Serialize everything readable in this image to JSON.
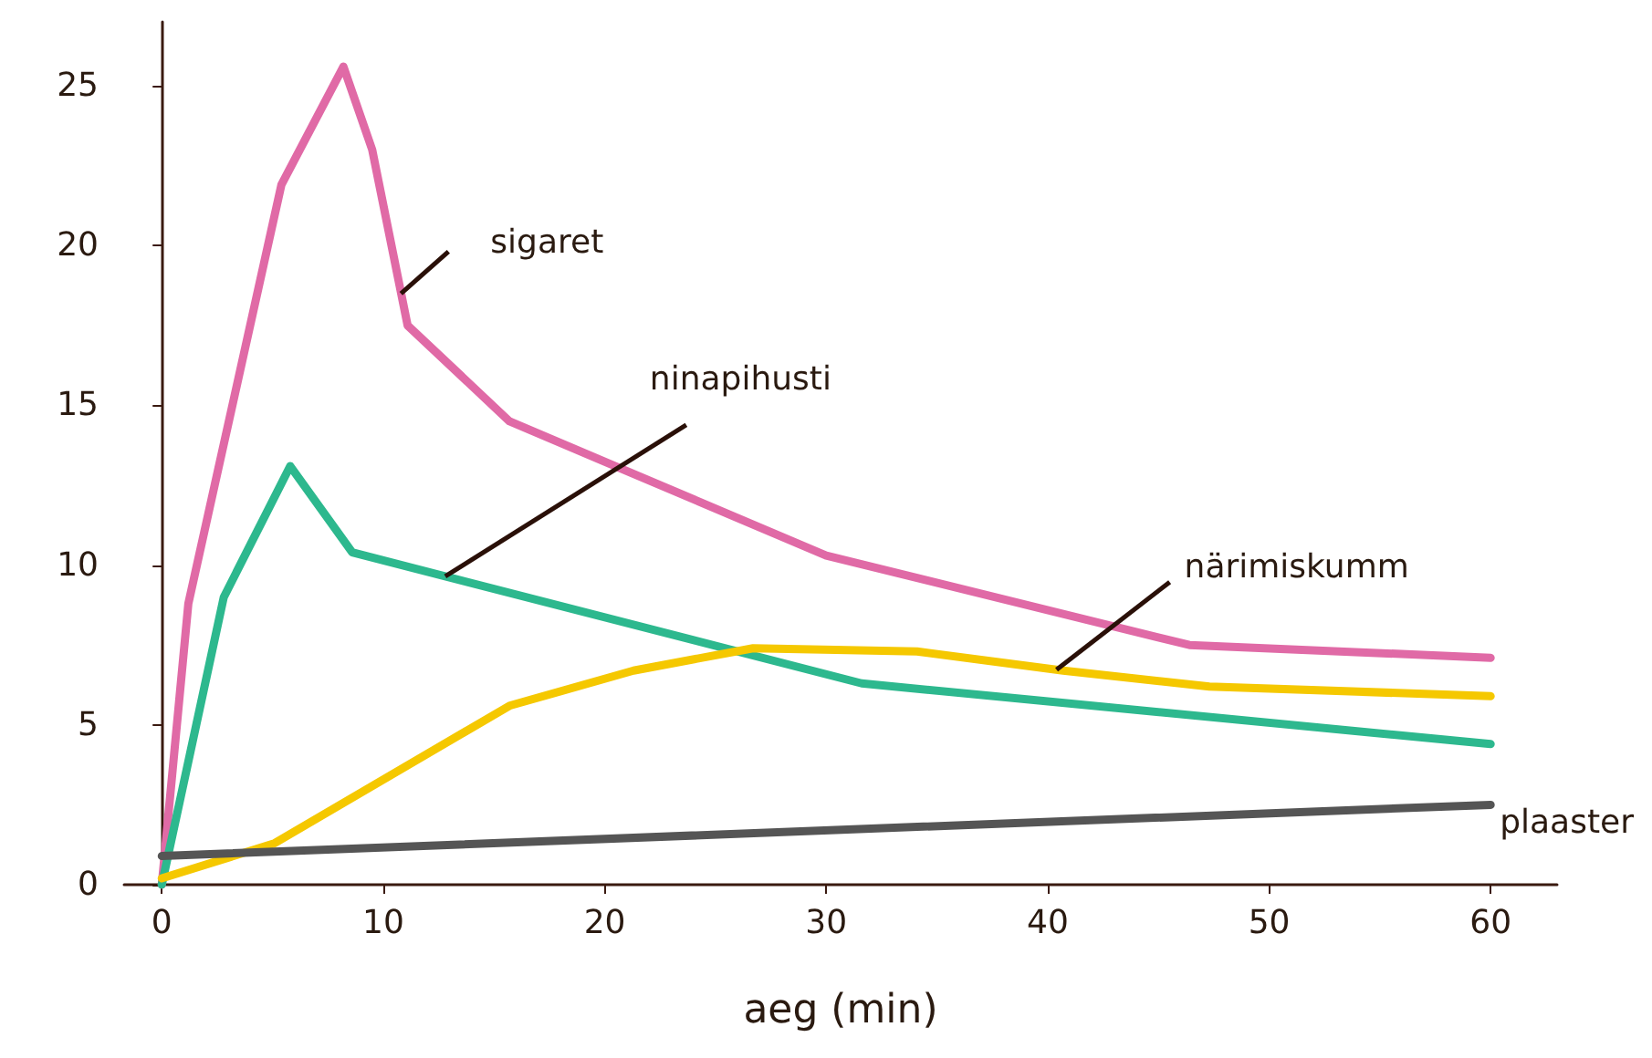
{
  "chart_data": {
    "type": "line",
    "xlabel": "aeg (min)",
    "xlim": [
      -1.7,
      63
    ],
    "ylim": [
      0,
      27
    ],
    "xticks": [
      0,
      10,
      20,
      30,
      40,
      50,
      60
    ],
    "yticks": [
      0,
      5,
      10,
      15,
      20,
      25
    ],
    "grid": false,
    "marker": "none",
    "line_style": "solid",
    "series": [
      {
        "color": "#e06aa6",
        "x": [
          0,
          1.2,
          5.4,
          8.2,
          9.5,
          11.1,
          15.7,
          30,
          46.4,
          60
        ],
        "values": [
          0,
          8.8,
          21.9,
          25.6,
          23.0,
          17.5,
          14.5,
          10.3,
          7.5,
          7.1
        ]
      },
      {
        "color": "#2db88e",
        "x": [
          0,
          2.8,
          5.8,
          8.6,
          31.6,
          60
        ],
        "values": [
          0,
          9.0,
          13.1,
          10.4,
          6.3,
          4.4
        ]
      },
      {
        "color": "#f5c800",
        "x": [
          0,
          5.1,
          15.7,
          21.3,
          26.7,
          34.1,
          40.7,
          47.3,
          60
        ],
        "values": [
          0.2,
          1.3,
          5.6,
          6.7,
          7.4,
          7.3,
          6.7,
          6.2,
          5.9
        ]
      },
      {
        "color": "#555555",
        "x": [
          0,
          60
        ],
        "values": [
          0.9,
          2.5
        ]
      }
    ],
    "annotations": [
      {
        "text": "sigaret",
        "x": 10.8,
        "y": 18.5
      },
      {
        "text": "ninapihusti",
        "x": 12.8,
        "y": 9.65
      },
      {
        "text": "närimiskumm",
        "x": 40.4,
        "y": 6.73
      },
      {
        "text": "plaaster",
        "x": 60,
        "y": 2.5
      }
    ]
  }
}
